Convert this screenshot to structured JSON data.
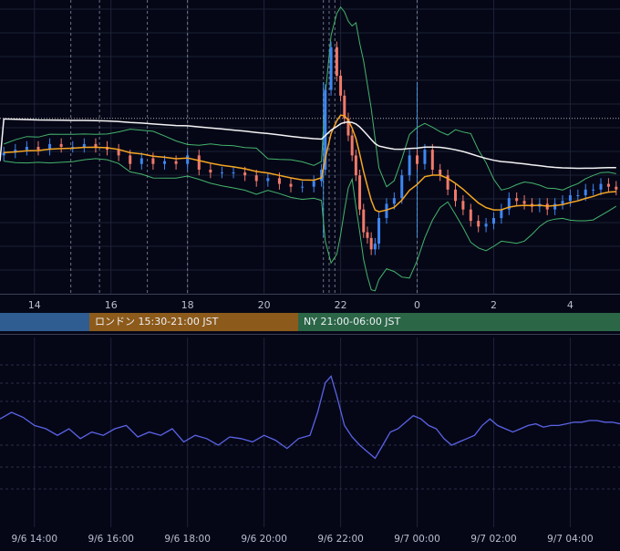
{
  "chart_data": [
    {
      "type": "candlestick",
      "panel": "price",
      "x_ticks": [
        "14",
        "16",
        "18",
        "20",
        "22",
        "0",
        "2",
        "4"
      ],
      "x_tick_hours": [
        14,
        16,
        18,
        20,
        22,
        24,
        26,
        28
      ],
      "x_range_hours": [
        13.1,
        29.3
      ],
      "y_range": [
        0,
        100
      ],
      "grid": true,
      "colors": {
        "up": "#3f86f2",
        "down": "#f07a6a",
        "ema": "#f5a623",
        "sma_long": "#f4f4f4",
        "bollinger": "#45b46b",
        "dotted_ref": "#d8d8d8"
      },
      "reference_level": 60,
      "vertical_markers_hours": [
        14.95,
        15.7,
        16.95,
        18.0,
        21.55,
        21.7,
        21.85,
        24.0
      ],
      "candles_hours_close": [
        [
          13.2,
          48
        ],
        [
          13.5,
          49
        ],
        [
          13.8,
          50
        ],
        [
          14.1,
          49
        ],
        [
          14.4,
          51
        ],
        [
          14.7,
          50
        ],
        [
          15.0,
          50
        ],
        [
          15.3,
          51
        ],
        [
          15.6,
          50
        ],
        [
          15.9,
          49
        ],
        [
          16.2,
          47
        ],
        [
          16.5,
          44
        ],
        [
          16.8,
          46
        ],
        [
          17.1,
          44
        ],
        [
          17.4,
          45
        ],
        [
          17.7,
          44
        ],
        [
          18.0,
          47
        ],
        [
          18.3,
          42
        ],
        [
          18.6,
          41
        ],
        [
          18.9,
          41
        ],
        [
          19.2,
          41
        ],
        [
          19.5,
          40
        ],
        [
          19.8,
          38
        ],
        [
          20.1,
          39
        ],
        [
          20.4,
          37
        ],
        [
          20.7,
          36
        ],
        [
          21.0,
          36
        ],
        [
          21.3,
          38
        ],
        [
          21.5,
          42
        ],
        [
          21.6,
          70
        ],
        [
          21.75,
          85
        ],
        [
          21.9,
          75
        ],
        [
          22.0,
          68
        ],
        [
          22.1,
          60
        ],
        [
          22.2,
          54
        ],
        [
          22.3,
          47
        ],
        [
          22.4,
          40
        ],
        [
          22.5,
          28
        ],
        [
          22.6,
          20
        ],
        [
          22.7,
          18
        ],
        [
          22.8,
          14
        ],
        [
          22.9,
          16
        ],
        [
          23.0,
          25
        ],
        [
          23.2,
          30
        ],
        [
          23.4,
          32
        ],
        [
          23.6,
          40
        ],
        [
          23.8,
          47
        ],
        [
          24.0,
          44
        ],
        [
          24.2,
          49
        ],
        [
          24.4,
          42
        ],
        [
          24.6,
          40
        ],
        [
          24.8,
          35
        ],
        [
          25.0,
          31
        ],
        [
          25.2,
          28
        ],
        [
          25.4,
          24
        ],
        [
          25.6,
          22
        ],
        [
          25.8,
          23
        ],
        [
          26.0,
          25
        ],
        [
          26.2,
          28
        ],
        [
          26.4,
          32
        ],
        [
          26.6,
          31
        ],
        [
          26.8,
          30
        ],
        [
          27.0,
          29
        ],
        [
          27.2,
          30
        ],
        [
          27.4,
          28
        ],
        [
          27.6,
          30
        ],
        [
          27.8,
          31
        ],
        [
          28.0,
          33
        ],
        [
          28.2,
          33
        ],
        [
          28.4,
          35
        ],
        [
          28.6,
          35
        ],
        [
          28.8,
          37
        ],
        [
          29.0,
          36
        ],
        [
          29.2,
          35
        ]
      ]
    },
    {
      "type": "line",
      "panel": "oscillator",
      "x_ticks": [
        "9/6 14:00",
        "9/6 16:00",
        "9/6 18:00",
        "9/6 20:00",
        "9/6 22:00",
        "9/7 00:00",
        "9/7 02:00",
        "9/7 04:00"
      ],
      "x_tick_hours": [
        14,
        16,
        18,
        20,
        22,
        24,
        26,
        28
      ],
      "y_range": [
        0,
        100
      ],
      "color": "#5b63e6",
      "x_hours": [
        13.1,
        13.4,
        13.7,
        14.0,
        14.3,
        14.6,
        14.9,
        15.2,
        15.5,
        15.8,
        16.1,
        16.4,
        16.7,
        17.0,
        17.3,
        17.6,
        17.9,
        18.2,
        18.5,
        18.8,
        19.1,
        19.4,
        19.7,
        20.0,
        20.3,
        20.6,
        20.9,
        21.2,
        21.4,
        21.6,
        21.75,
        21.9,
        22.1,
        22.3,
        22.5,
        22.7,
        22.9,
        23.1,
        23.3,
        23.5,
        23.7,
        23.9,
        24.1,
        24.3,
        24.5,
        24.7,
        24.9,
        25.1,
        25.3,
        25.5,
        25.7,
        25.9,
        26.1,
        26.3,
        26.5,
        26.7,
        26.9,
        27.1,
        27.3,
        27.5,
        27.7,
        27.9,
        28.1,
        28.3,
        28.5,
        28.7,
        28.9,
        29.1,
        29.3
      ],
      "y": [
        56,
        60,
        57,
        52,
        50,
        46,
        50,
        44,
        48,
        46,
        50,
        52,
        45,
        48,
        46,
        50,
        42,
        46,
        44,
        40,
        45,
        44,
        42,
        46,
        43,
        38,
        44,
        46,
        60,
        78,
        82,
        70,
        52,
        45,
        40,
        36,
        32,
        40,
        48,
        50,
        54,
        58,
        56,
        52,
        50,
        44,
        40,
        42,
        44,
        46,
        52,
        56,
        52,
        50,
        48,
        50,
        52,
        53,
        51,
        52,
        52,
        53,
        54,
        54,
        55,
        55,
        54,
        54,
        53
      ]
    }
  ],
  "sessions": [
    {
      "name": "",
      "color": "#2f5d91"
    },
    {
      "name": "ロンドン 15:30-21:00 JST",
      "color": "#8c5a1a"
    },
    {
      "name": "NY 21:00-06:00 JST",
      "color": "#2b6646"
    }
  ]
}
